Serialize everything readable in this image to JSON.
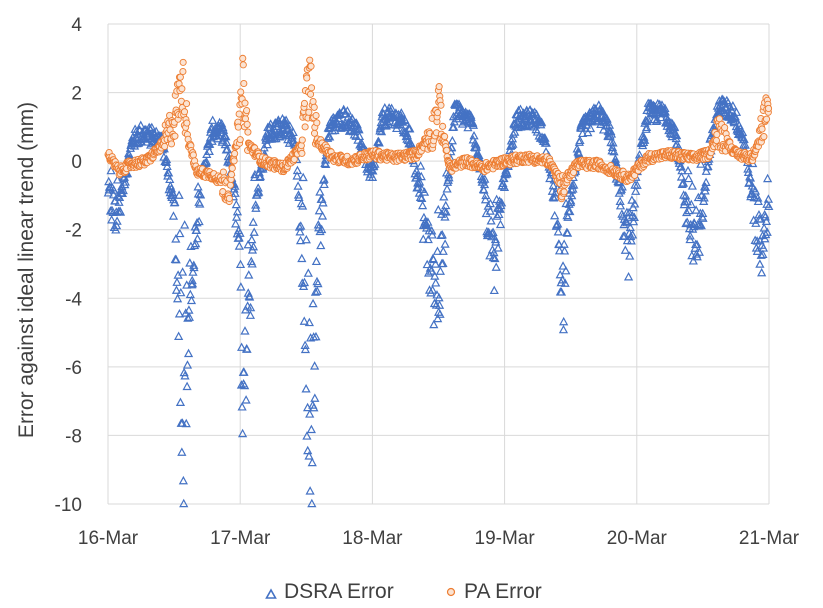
{
  "chart_data": {
    "type": "scatter",
    "title": "",
    "xlabel": "",
    "ylabel": "Error against ideal linear trend (mm)",
    "x_ticks": [
      "16-Mar",
      "17-Mar",
      "18-Mar",
      "19-Mar",
      "20-Mar",
      "21-Mar"
    ],
    "y_ticks": [
      "4",
      "2",
      "0",
      "-2",
      "-4",
      "-6",
      "-8",
      "-10"
    ],
    "xlim": [
      "16-Mar",
      "21-Mar"
    ],
    "ylim": [
      -10,
      4
    ],
    "grid": true,
    "legend_position": "bottom",
    "series": [
      {
        "name": "DSRA Error",
        "marker": "triangle-open",
        "color": "#4472C4",
        "profile_points": [
          {
            "x": "2018-03-16 00:00",
            "y": -0.8
          },
          {
            "x": "2018-03-16 01:30",
            "y": -1.8
          },
          {
            "x": "2018-03-16 03:00",
            "y": -0.5
          },
          {
            "x": "2018-03-16 04:30",
            "y": 0.6
          },
          {
            "x": "2018-03-16 06:00",
            "y": 0.8
          },
          {
            "x": "2018-03-16 08:00",
            "y": 0.7
          },
          {
            "x": "2018-03-16 10:00",
            "y": 0.5
          },
          {
            "x": "2018-03-16 12:00",
            "y": -1.5
          },
          {
            "x": "2018-03-16 13:00",
            "y": -5.0
          },
          {
            "x": "2018-03-16 13:50",
            "y": -8.8
          },
          {
            "x": "2018-03-16 15:00",
            "y": -3.5
          },
          {
            "x": "2018-03-16 17:00",
            "y": -0.5
          },
          {
            "x": "2018-03-16 19:00",
            "y": 0.9
          },
          {
            "x": "2018-03-16 21:00",
            "y": 0.8
          },
          {
            "x": "2018-03-16 23:00",
            "y": -1.0
          },
          {
            "x": "2018-03-17 00:00",
            "y": -3.0
          },
          {
            "x": "2018-03-17 00:30",
            "y": -7.7
          },
          {
            "x": "2018-03-17 01:30",
            "y": -4.5
          },
          {
            "x": "2018-03-17 03:00",
            "y": -1.0
          },
          {
            "x": "2018-03-17 05:00",
            "y": 0.8
          },
          {
            "x": "2018-03-17 08:00",
            "y": 1.0
          },
          {
            "x": "2018-03-17 10:00",
            "y": 0.5
          },
          {
            "x": "2018-03-17 11:00",
            "y": -2.0
          },
          {
            "x": "2018-03-17 12:00",
            "y": -6.0
          },
          {
            "x": "2018-03-17 13:00",
            "y": -9.5
          },
          {
            "x": "2018-03-17 14:00",
            "y": -3.0
          },
          {
            "x": "2018-03-17 16:00",
            "y": 0.9
          },
          {
            "x": "2018-03-17 19:00",
            "y": 1.3
          },
          {
            "x": "2018-03-17 21:00",
            "y": 0.9
          },
          {
            "x": "2018-03-18 00:00",
            "y": -0.5
          },
          {
            "x": "2018-03-18 02:00",
            "y": 1.3
          },
          {
            "x": "2018-03-18 05:00",
            "y": 1.2
          },
          {
            "x": "2018-03-18 07:00",
            "y": 0.6
          },
          {
            "x": "2018-03-18 09:00",
            "y": -1.5
          },
          {
            "x": "2018-03-18 11:00",
            "y": -3.5
          },
          {
            "x": "2018-03-18 12:00",
            "y": -4.8
          },
          {
            "x": "2018-03-18 13:30",
            "y": -1.0
          },
          {
            "x": "2018-03-18 15:00",
            "y": 1.5
          },
          {
            "x": "2018-03-18 18:00",
            "y": 1.1
          },
          {
            "x": "2018-03-18 20:00",
            "y": -0.5
          },
          {
            "x": "2018-03-18 22:00",
            "y": -3.0
          },
          {
            "x": "2018-03-18 23:30",
            "y": -1.0
          },
          {
            "x": "2018-03-19 02:00",
            "y": 1.2
          },
          {
            "x": "2018-03-19 05:00",
            "y": 1.3
          },
          {
            "x": "2018-03-19 07:00",
            "y": 0.8
          },
          {
            "x": "2018-03-19 09:00",
            "y": -1.0
          },
          {
            "x": "2018-03-19 10:30",
            "y": -4.2
          },
          {
            "x": "2018-03-19 12:00",
            "y": -1.0
          },
          {
            "x": "2018-03-19 14:00",
            "y": 0.9
          },
          {
            "x": "2018-03-19 17:00",
            "y": 1.4
          },
          {
            "x": "2018-03-19 19:00",
            "y": 0.9
          },
          {
            "x": "2018-03-19 21:00",
            "y": -1.0
          },
          {
            "x": "2018-03-19 22:30",
            "y": -2.5
          },
          {
            "x": "2018-03-20 00:00",
            "y": -0.5
          },
          {
            "x": "2018-03-20 02:00",
            "y": 1.4
          },
          {
            "x": "2018-03-20 05:00",
            "y": 1.4
          },
          {
            "x": "2018-03-20 07:00",
            "y": 0.8
          },
          {
            "x": "2018-03-20 09:00",
            "y": -1.5
          },
          {
            "x": "2018-03-20 11:00",
            "y": -2.5
          },
          {
            "x": "2018-03-20 13:00",
            "y": 0.2
          },
          {
            "x": "2018-03-20 15:00",
            "y": 1.6
          },
          {
            "x": "2018-03-20 17:30",
            "y": 1.4
          },
          {
            "x": "2018-03-20 19:30",
            "y": 0.6
          },
          {
            "x": "2018-03-20 21:00",
            "y": -1.2
          },
          {
            "x": "2018-03-20 22:30",
            "y": -2.8
          },
          {
            "x": "2018-03-21 00:00",
            "y": -1.2
          }
        ]
      },
      {
        "name": "PA Error",
        "marker": "circle-open",
        "color": "#ED7D31",
        "profile_points": [
          {
            "x": "2018-03-16 00:00",
            "y": 0.2
          },
          {
            "x": "2018-03-16 02:00",
            "y": -0.3
          },
          {
            "x": "2018-03-16 04:00",
            "y": -0.1
          },
          {
            "x": "2018-03-16 07:00",
            "y": 0.0
          },
          {
            "x": "2018-03-16 10:00",
            "y": 0.5
          },
          {
            "x": "2018-03-16 12:00",
            "y": 1.2
          },
          {
            "x": "2018-03-16 13:30",
            "y": 2.3
          },
          {
            "x": "2018-03-16 14:30",
            "y": 0.8
          },
          {
            "x": "2018-03-16 16:00",
            "y": -0.3
          },
          {
            "x": "2018-03-16 19:00",
            "y": -0.4
          },
          {
            "x": "2018-03-16 22:00",
            "y": -0.8
          },
          {
            "x": "2018-03-17 00:00",
            "y": 1.2
          },
          {
            "x": "2018-03-17 00:30",
            "y": 2.2
          },
          {
            "x": "2018-03-17 01:30",
            "y": 0.5
          },
          {
            "x": "2018-03-17 04:00",
            "y": 0.0
          },
          {
            "x": "2018-03-17 08:00",
            "y": -0.2
          },
          {
            "x": "2018-03-17 11:00",
            "y": 0.4
          },
          {
            "x": "2018-03-17 12:30",
            "y": 2.4
          },
          {
            "x": "2018-03-17 14:00",
            "y": 0.6
          },
          {
            "x": "2018-03-17 17:00",
            "y": 0.1
          },
          {
            "x": "2018-03-17 20:00",
            "y": 0.0
          },
          {
            "x": "2018-03-18 00:00",
            "y": 0.2
          },
          {
            "x": "2018-03-18 04:00",
            "y": 0.1
          },
          {
            "x": "2018-03-18 08:00",
            "y": 0.2
          },
          {
            "x": "2018-03-18 11:00",
            "y": 0.9
          },
          {
            "x": "2018-03-18 12:00",
            "y": 1.6
          },
          {
            "x": "2018-03-18 14:00",
            "y": -0.2
          },
          {
            "x": "2018-03-18 17:00",
            "y": 0.0
          },
          {
            "x": "2018-03-18 20:00",
            "y": -0.2
          },
          {
            "x": "2018-03-19 00:00",
            "y": 0.0
          },
          {
            "x": "2018-03-19 04:00",
            "y": 0.1
          },
          {
            "x": "2018-03-19 08:00",
            "y": 0.0
          },
          {
            "x": "2018-03-19 10:30",
            "y": -0.7
          },
          {
            "x": "2018-03-19 13:00",
            "y": -0.1
          },
          {
            "x": "2018-03-19 17:00",
            "y": -0.1
          },
          {
            "x": "2018-03-19 20:00",
            "y": -0.3
          },
          {
            "x": "2018-03-19 22:30",
            "y": -0.5
          },
          {
            "x": "2018-03-20 02:00",
            "y": 0.1
          },
          {
            "x": "2018-03-20 06:00",
            "y": 0.2
          },
          {
            "x": "2018-03-20 10:00",
            "y": 0.1
          },
          {
            "x": "2018-03-20 13:00",
            "y": 0.2
          },
          {
            "x": "2018-03-20 15:00",
            "y": 0.9
          },
          {
            "x": "2018-03-20 18:00",
            "y": 0.2
          },
          {
            "x": "2018-03-20 21:00",
            "y": 0.1
          },
          {
            "x": "2018-03-20 23:30",
            "y": 1.4
          },
          {
            "x": "2018-03-21 00:00",
            "y": 1.0
          }
        ]
      }
    ]
  }
}
